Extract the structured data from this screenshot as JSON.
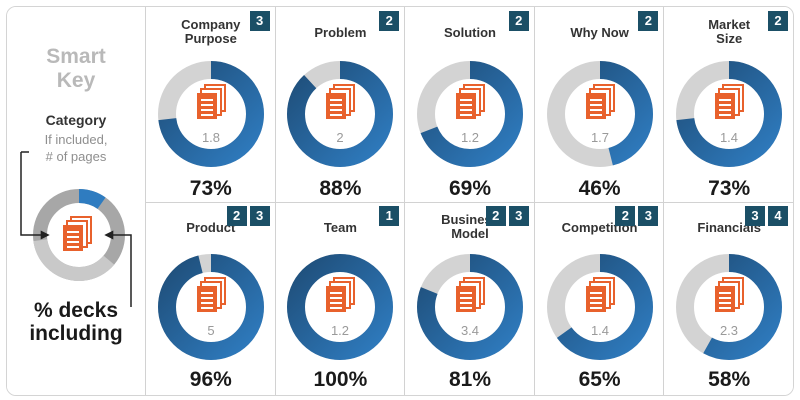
{
  "key": {
    "title_line1": "Smart",
    "title_line2": "Key",
    "category_label": "Category",
    "sub_line1": "If included,",
    "sub_line2": "# of pages",
    "pct_line1": "% decks",
    "pct_line2": "including"
  },
  "chart_data": {
    "type": "donut",
    "categories": [
      {
        "name_lines": [
          "Company",
          "Purpose"
        ],
        "percent": 73,
        "percent_label": "73%",
        "pages": "1.8",
        "badges": [
          "3"
        ]
      },
      {
        "name_lines": [
          "Problem"
        ],
        "percent": 88,
        "percent_label": "88%",
        "pages": "2",
        "badges": [
          "2"
        ]
      },
      {
        "name_lines": [
          "Solution"
        ],
        "percent": 69,
        "percent_label": "69%",
        "pages": "1.2",
        "badges": [
          "2"
        ]
      },
      {
        "name_lines": [
          "Why Now"
        ],
        "percent": 46,
        "percent_label": "46%",
        "pages": "1.7",
        "badges": [
          "2"
        ]
      },
      {
        "name_lines": [
          "Market",
          "Size"
        ],
        "percent": 73,
        "percent_label": "73%",
        "pages": "1.4",
        "badges": [
          "2"
        ]
      },
      {
        "name_lines": [
          "Product"
        ],
        "percent": 96,
        "percent_label": "96%",
        "pages": "5",
        "badges": [
          "2",
          "3"
        ]
      },
      {
        "name_lines": [
          "Team"
        ],
        "percent": 100,
        "percent_label": "100%",
        "pages": "1.2",
        "badges": [
          "1"
        ]
      },
      {
        "name_lines": [
          "Business",
          "Model"
        ],
        "percent": 81,
        "percent_label": "81%",
        "pages": "3.4",
        "badges": [
          "2",
          "3"
        ]
      },
      {
        "name_lines": [
          "Competition"
        ],
        "percent": 65,
        "percent_label": "65%",
        "pages": "1.4",
        "badges": [
          "2",
          "3"
        ]
      },
      {
        "name_lines": [
          "Financials"
        ],
        "percent": 58,
        "percent_label": "58%",
        "pages": "2.3",
        "badges": [
          "3",
          "4"
        ]
      }
    ]
  },
  "colors": {
    "ring_dark": "#1f4e79",
    "ring_light": "#2f7cc0",
    "ring_gray": "#d3d3d3",
    "doc_icon": "#e8612c",
    "badge": "#1b4f66",
    "key_gray": "#b9b9b9"
  },
  "icons": {
    "document": "document-stack-icon"
  }
}
